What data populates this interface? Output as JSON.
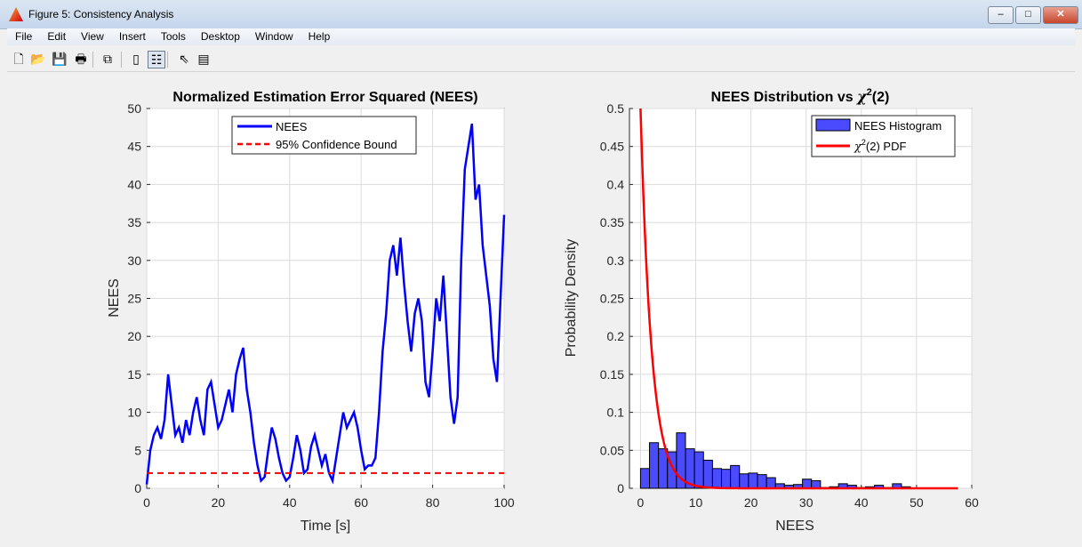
{
  "window": {
    "title": "Figure 5: Consistency Analysis",
    "minimize": "–",
    "maximize": "□",
    "close": "✕"
  },
  "menu": [
    "File",
    "Edit",
    "View",
    "Insert",
    "Tools",
    "Desktop",
    "Window",
    "Help"
  ],
  "toolbar": [
    {
      "name": "new-figure-icon",
      "g": "🗋"
    },
    {
      "name": "open-file-icon",
      "g": "📂"
    },
    {
      "name": "save-icon",
      "g": "💾"
    },
    {
      "name": "print-icon",
      "g": "🖶"
    },
    {
      "name": "link-plot-icon",
      "g": "⧉"
    },
    {
      "name": "colorbar-icon",
      "g": "▯"
    },
    {
      "name": "legend-icon",
      "g": "☷"
    },
    {
      "name": "pointer-icon",
      "g": "⇖"
    },
    {
      "name": "property-editor-icon",
      "g": "▤"
    }
  ],
  "colors": {
    "nees": "#0000ff",
    "bound": "#ff0000",
    "hist": "#4a4aff",
    "pdf": "#ff0000"
  },
  "chart_data": [
    {
      "type": "line",
      "title": "Normalized Estimation Error Squared (NEES)",
      "xlabel": "Time [s]",
      "ylabel": "NEES",
      "xlim": [
        0,
        100
      ],
      "ylim": [
        0,
        50
      ],
      "xticks": [
        "0",
        "20",
        "40",
        "60",
        "80",
        "100"
      ],
      "yticks": [
        "0",
        "5",
        "10",
        "15",
        "20",
        "25",
        "30",
        "35",
        "40",
        "45",
        "50"
      ],
      "grid": true,
      "legend_position": "top-center",
      "series": [
        {
          "name": "NEES",
          "x": [
            0,
            1,
            2,
            3,
            4,
            5,
            6,
            7,
            8,
            9,
            10,
            11,
            12,
            13,
            14,
            15,
            16,
            17,
            18,
            19,
            20,
            21,
            22,
            23,
            24,
            25,
            26,
            27,
            28,
            29,
            30,
            31,
            32,
            33,
            34,
            35,
            36,
            37,
            38,
            39,
            40,
            41,
            42,
            43,
            44,
            45,
            46,
            47,
            48,
            49,
            50,
            51,
            52,
            53,
            54,
            55,
            56,
            57,
            58,
            59,
            60,
            61,
            62,
            63,
            64,
            65,
            66,
            67,
            68,
            69,
            70,
            71,
            72,
            73,
            74,
            75,
            76,
            77,
            78,
            79,
            80,
            81,
            82,
            83,
            84,
            85,
            86,
            87,
            88,
            89,
            90,
            91,
            92,
            93,
            94,
            95,
            96,
            97,
            98,
            99,
            100
          ],
          "y": [
            0.5,
            5,
            7,
            8,
            6.5,
            9,
            15,
            11,
            7,
            8,
            6,
            9,
            7,
            10,
            12,
            9,
            7,
            13,
            14,
            11,
            8,
            9,
            11,
            13,
            10,
            15,
            17,
            18.5,
            13,
            10,
            6,
            3,
            1,
            1.5,
            5,
            8,
            6.5,
            4,
            2,
            1,
            1.5,
            4,
            7,
            5,
            2,
            2.5,
            5.5,
            7,
            5,
            3,
            4.5,
            2,
            1,
            4,
            7,
            10,
            8,
            9,
            10,
            8,
            5,
            2.5,
            3,
            3,
            4,
            10,
            18,
            23,
            30,
            32,
            28,
            33,
            27,
            22,
            18,
            23,
            25,
            22,
            14,
            12,
            18,
            25,
            22,
            28,
            20,
            12,
            8.5,
            12,
            30,
            42,
            45,
            48,
            38,
            40,
            32,
            28,
            24,
            17,
            14,
            25,
            36
          ]
        },
        {
          "name": "95% Confidence Bound",
          "x": [
            0,
            100
          ],
          "y": [
            2,
            2
          ],
          "style": "dashed"
        }
      ]
    },
    {
      "type": "bar",
      "title": "NEES Distribution vs χ²(2)",
      "title_main": "NEES Distribution vs ",
      "title_chi": "χ",
      "title_sup": "2",
      "title_end": "(2)",
      "xlabel": "NEES",
      "ylabel": "Probability Density",
      "xlim": [
        -2,
        60
      ],
      "ylim": [
        0,
        0.5
      ],
      "xticks": [
        "0",
        "10",
        "20",
        "30",
        "40",
        "50",
        "60"
      ],
      "yticks": [
        "0",
        "0.05",
        "0.1",
        "0.15",
        "0.2",
        "0.25",
        "0.3",
        "0.35",
        "0.4",
        "0.45",
        "0.5"
      ],
      "grid": true,
      "legend_position": "top-right",
      "bin_width": 1.63,
      "bin_start": 0,
      "values": [
        0.026,
        0.06,
        0.052,
        0.048,
        0.073,
        0.052,
        0.048,
        0.037,
        0.026,
        0.025,
        0.03,
        0.019,
        0.02,
        0.018,
        0.014,
        0.006,
        0.004,
        0.005,
        0.012,
        0.01,
        0.001,
        0.002,
        0.006,
        0.004,
        0.001,
        0.002,
        0.004,
        0.001,
        0.006,
        0.002
      ],
      "legend": {
        "hist": "NEES Histogram",
        "pdf_chi": "χ",
        "pdf_sup": "2",
        "pdf_end": "(2) PDF"
      },
      "pdf": {
        "name": "χ²(2) PDF",
        "formula": "0.5*exp(-x/2)",
        "x_range": [
          0,
          57.5
        ]
      }
    }
  ]
}
